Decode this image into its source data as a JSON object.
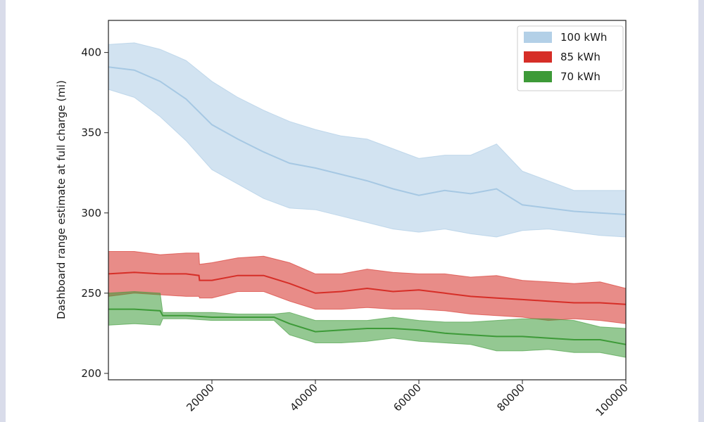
{
  "chart_data": {
    "type": "line",
    "title": "",
    "xlabel": "",
    "ylabel": "Dashboard range estimate at full charge (mi)",
    "xlim": [
      0,
      100000
    ],
    "ylim": [
      196,
      420
    ],
    "x_ticks": [
      20000,
      40000,
      60000,
      80000,
      100000
    ],
    "x_tick_labels": [
      "20000",
      "40000",
      "60000",
      "80000",
      "100000"
    ],
    "y_ticks": [
      200,
      250,
      300,
      350,
      400
    ],
    "y_tick_labels": [
      "200",
      "250",
      "300",
      "350",
      "400"
    ],
    "grid": false,
    "legend_position": "top-right",
    "series": [
      {
        "name": "100 kWh",
        "color": "#a6c8e3",
        "x": [
          0,
          5000,
          10000,
          15000,
          20000,
          25000,
          30000,
          35000,
          40000,
          45000,
          50000,
          55000,
          60000,
          65000,
          70000,
          75000,
          80000,
          85000,
          90000,
          95000,
          100000
        ],
        "mean": [
          391,
          389,
          382,
          371,
          355,
          346,
          338,
          331,
          328,
          324,
          320,
          315,
          311,
          314,
          312,
          315,
          305,
          303,
          301,
          300,
          299
        ],
        "upper": [
          405,
          406,
          402,
          395,
          382,
          372,
          364,
          357,
          352,
          348,
          346,
          340,
          334,
          336,
          336,
          343,
          326,
          320,
          314,
          314,
          314
        ],
        "lower": [
          377,
          372,
          360,
          345,
          327,
          318,
          309,
          303,
          302,
          298,
          294,
          290,
          288,
          290,
          287,
          285,
          289,
          290,
          288,
          286,
          285
        ]
      },
      {
        "name": "85 kWh",
        "color": "#d62e27",
        "x": [
          0,
          5000,
          10000,
          15000,
          17500,
          17600,
          20000,
          25000,
          30000,
          35000,
          40000,
          45000,
          50000,
          55000,
          60000,
          65000,
          70000,
          75000,
          80000,
          85000,
          90000,
          95000,
          100000
        ],
        "mean": [
          262,
          263,
          262,
          262,
          261,
          258,
          258,
          261,
          261,
          256,
          250,
          251,
          253,
          251,
          252,
          250,
          248,
          247,
          246,
          245,
          244,
          244,
          243
        ],
        "upper": [
          276,
          276,
          274,
          275,
          275,
          268,
          269,
          272,
          273,
          269,
          262,
          262,
          265,
          263,
          262,
          262,
          260,
          261,
          258,
          257,
          256,
          257,
          253
        ],
        "lower": [
          248,
          250,
          249,
          248,
          248,
          247,
          247,
          251,
          251,
          245,
          240,
          240,
          241,
          240,
          240,
          239,
          237,
          236,
          235,
          233,
          234,
          233,
          231
        ]
      },
      {
        "name": "70 kWh",
        "color": "#3d9a38",
        "x": [
          0,
          5000,
          10000,
          10500,
          15000,
          20000,
          25000,
          30000,
          32000,
          35000,
          40000,
          45000,
          50000,
          55000,
          60000,
          65000,
          70000,
          75000,
          80000,
          85000,
          90000,
          95000,
          100000
        ],
        "mean": [
          240,
          240,
          239,
          236,
          236,
          235,
          235,
          235,
          235,
          231,
          226,
          227,
          228,
          228,
          227,
          225,
          224,
          223,
          223,
          222,
          221,
          221,
          218
        ],
        "upper": [
          250,
          251,
          250,
          238,
          238,
          238,
          237,
          237,
          237,
          238,
          233,
          233,
          233,
          235,
          233,
          232,
          232,
          233,
          234,
          234,
          233,
          229,
          228
        ],
        "lower": [
          230,
          231,
          230,
          234,
          234,
          233,
          233,
          233,
          233,
          224,
          219,
          219,
          220,
          222,
          220,
          219,
          218,
          214,
          214,
          215,
          213,
          213,
          210
        ]
      }
    ]
  }
}
